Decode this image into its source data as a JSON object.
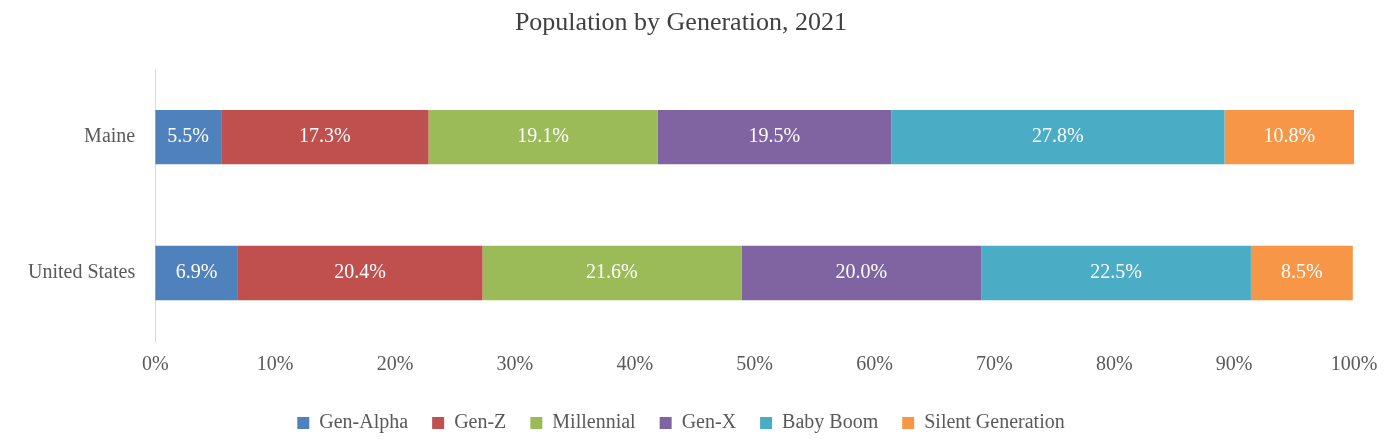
{
  "chart_data": {
    "type": "bar",
    "orientation": "horizontal",
    "stacked": true,
    "title": "Population by Generation, 2021",
    "categories": [
      "Maine",
      "United States"
    ],
    "series": [
      {
        "name": "Gen-Alpha",
        "color": "#4f81bd",
        "values": [
          5.5,
          6.9
        ],
        "value_labels": [
          "5.5%",
          "6.9%"
        ]
      },
      {
        "name": "Gen-Z",
        "color": "#c0504d",
        "values": [
          17.3,
          20.4
        ],
        "value_labels": [
          "17.3%",
          "20.4%"
        ]
      },
      {
        "name": "Millennial",
        "color": "#9bbb59",
        "values": [
          19.1,
          21.6
        ],
        "value_labels": [
          "19.1%",
          "21.6%"
        ]
      },
      {
        "name": "Gen-X",
        "color": "#8064a2",
        "values": [
          19.5,
          20.0
        ],
        "value_labels": [
          "19.5%",
          "20.0%"
        ]
      },
      {
        "name": "Baby Boom",
        "color": "#4bacc6",
        "values": [
          27.8,
          22.5
        ],
        "value_labels": [
          "27.8%",
          "22.5%"
        ]
      },
      {
        "name": "Silent Generation",
        "color": "#f79646",
        "values": [
          10.8,
          8.5
        ],
        "value_labels": [
          "10.8%",
          "8.5%"
        ]
      }
    ],
    "xlim": [
      0,
      100
    ],
    "xticks": [
      {
        "value": 0,
        "label": "0%"
      },
      {
        "value": 10,
        "label": "10%"
      },
      {
        "value": 20,
        "label": "20%"
      },
      {
        "value": 30,
        "label": "30%"
      },
      {
        "value": 40,
        "label": "40%"
      },
      {
        "value": 50,
        "label": "50%"
      },
      {
        "value": 60,
        "label": "60%"
      },
      {
        "value": 70,
        "label": "70%"
      },
      {
        "value": 80,
        "label": "80%"
      },
      {
        "value": 90,
        "label": "90%"
      },
      {
        "value": 100,
        "label": "100%"
      }
    ],
    "grid": false,
    "legend": "bottom"
  }
}
